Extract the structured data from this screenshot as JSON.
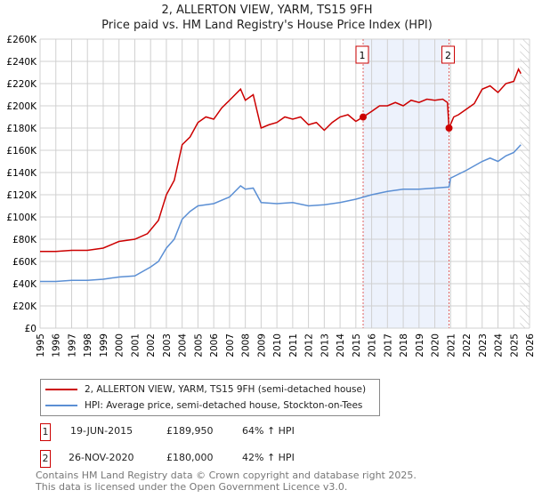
{
  "header": {
    "title": "2, ALLERTON VIEW, YARM, TS15 9FH",
    "subtitle": "Price paid vs. HM Land Registry's House Price Index (HPI)"
  },
  "chart_data": {
    "type": "line",
    "title": "2, ALLERTON VIEW, YARM, TS15 9FH",
    "subtitle": "Price paid vs. HM Land Registry's House Price Index (HPI)",
    "xlim": [
      1995,
      2026
    ],
    "ylim": [
      0,
      260000
    ],
    "x_ticks": [
      "1995",
      "1996",
      "1997",
      "1998",
      "1999",
      "2000",
      "2001",
      "2002",
      "2003",
      "2004",
      "2005",
      "2006",
      "2007",
      "2008",
      "2009",
      "2010",
      "2011",
      "2012",
      "2013",
      "2014",
      "2015",
      "2016",
      "2017",
      "2018",
      "2019",
      "2020",
      "2021",
      "2022",
      "2023",
      "2024",
      "2025",
      "2026"
    ],
    "y_ticks": [
      "£0",
      "£20K",
      "£40K",
      "£60K",
      "£80K",
      "£100K",
      "£120K",
      "£140K",
      "£160K",
      "£180K",
      "£200K",
      "£220K",
      "£240K",
      "£260K"
    ],
    "grid": true,
    "shaded_range": [
      2015.46,
      2020.9
    ],
    "hatched_from": 2025.4,
    "series": [
      {
        "name": "2, ALLERTON VIEW, YARM, TS15 9FH (semi-detached house)",
        "color": "#cc0000",
        "x": [
          1995,
          1996,
          1997,
          1998,
          1999,
          2000,
          2001,
          2001.8,
          2002.5,
          2003,
          2003.5,
          2004,
          2004.5,
          2005,
          2005.5,
          2006,
          2006.5,
          2007,
          2007.7,
          2008,
          2008.5,
          2009,
          2009.5,
          2010,
          2010.5,
          2011,
          2011.5,
          2012,
          2012.5,
          2013,
          2013.5,
          2014,
          2014.5,
          2015,
          2015.46,
          2016,
          2016.5,
          2017,
          2017.5,
          2018,
          2018.5,
          2019,
          2019.5,
          2020,
          2020.5,
          2020.8,
          2020.9,
          2021.2,
          2021.5,
          2022,
          2022.5,
          2023,
          2023.5,
          2024,
          2024.5,
          2025,
          2025.3,
          2025.45
        ],
        "y": [
          69000,
          69000,
          70000,
          70000,
          72000,
          78000,
          80000,
          85000,
          97000,
          120000,
          133000,
          165000,
          172000,
          185000,
          190000,
          188000,
          198000,
          205000,
          215000,
          205000,
          210000,
          180000,
          183000,
          185000,
          190000,
          188000,
          190000,
          183000,
          185000,
          178000,
          185000,
          190000,
          192000,
          186000,
          189950,
          195000,
          200000,
          200000,
          203000,
          200000,
          205000,
          203000,
          206000,
          205000,
          206000,
          203000,
          180000,
          190000,
          192000,
          197000,
          202000,
          215000,
          218000,
          212000,
          220000,
          222000,
          233000,
          229000
        ]
      },
      {
        "name": "HPI: Average price, semi-detached house, Stockton-on-Tees",
        "color": "#5b8fd4",
        "x": [
          1995,
          1996,
          1997,
          1998,
          1999,
          2000,
          2001,
          2002,
          2002.5,
          2003,
          2003.5,
          2004,
          2004.5,
          2005,
          2006,
          2007,
          2007.7,
          2008,
          2008.5,
          2009,
          2010,
          2011,
          2012,
          2013,
          2014,
          2015,
          2016,
          2017,
          2018,
          2019,
          2020,
          2020.9,
          2021,
          2022,
          2023,
          2023.5,
          2024,
          2024.5,
          2025,
          2025.45
        ],
        "y": [
          42000,
          42000,
          43000,
          43000,
          44000,
          46000,
          47000,
          55000,
          60000,
          72000,
          80000,
          98000,
          105000,
          110000,
          112000,
          118000,
          128000,
          125000,
          126000,
          113000,
          112000,
          113000,
          110000,
          111000,
          113000,
          116000,
          120000,
          123000,
          125000,
          125000,
          126000,
          127000,
          135000,
          142000,
          150000,
          153000,
          150000,
          155000,
          158000,
          165000
        ]
      }
    ],
    "legend": [
      {
        "label": "2, ALLERTON VIEW, YARM, TS15 9FH (semi-detached house)"
      },
      {
        "label": "HPI: Average price, semi-detached house, Stockton-on-Tees"
      }
    ],
    "annotations": [
      {
        "id": "1",
        "x": 2015.46,
        "y": 189950
      },
      {
        "id": "2",
        "x": 2020.9,
        "y": 180000
      }
    ]
  },
  "transactions": [
    {
      "id": "1",
      "date": "19-JUN-2015",
      "price": "£189,950",
      "hpi": "64% ↑ HPI"
    },
    {
      "id": "2",
      "date": "26-NOV-2020",
      "price": "£180,000",
      "hpi": "42% ↑ HPI"
    }
  ],
  "footer": {
    "line1": "Contains HM Land Registry data © Crown copyright and database right 2025.",
    "line2": "This data is licensed under the Open Government Licence v3.0."
  }
}
